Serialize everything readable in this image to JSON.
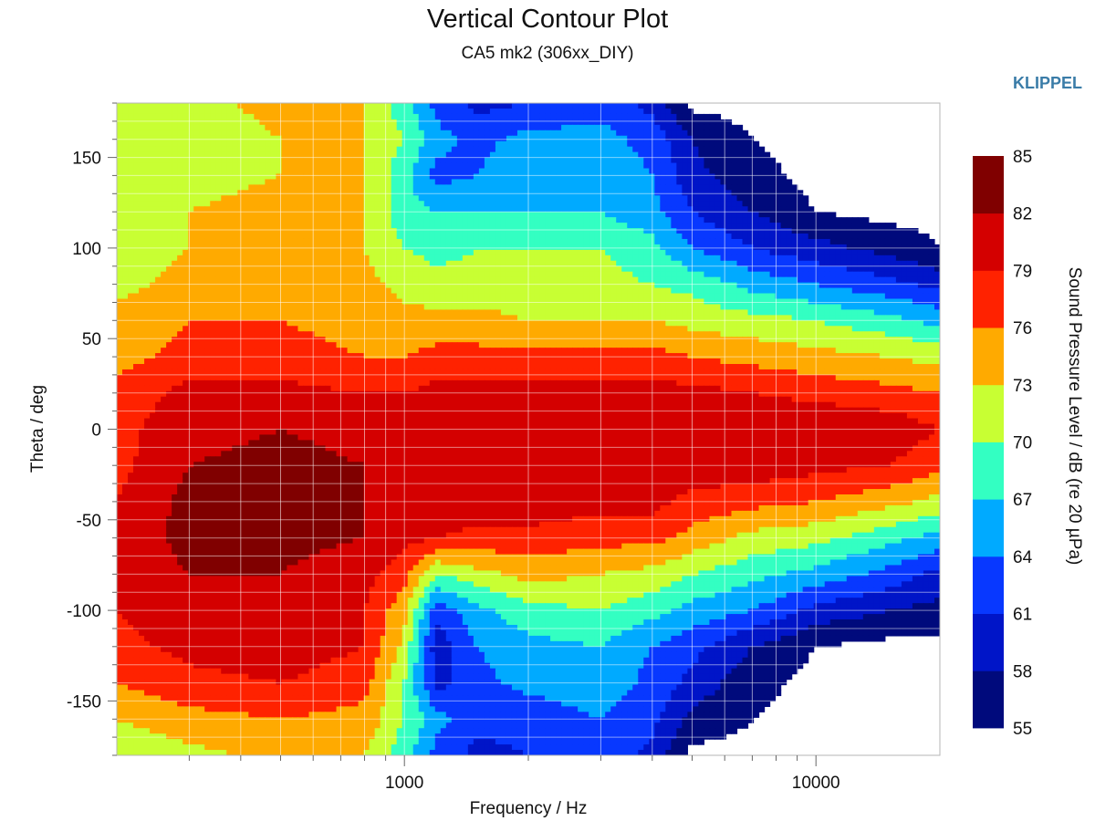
{
  "chart_data": {
    "type": "heatmap",
    "title": "Vertical Contour Plot",
    "subtitle": "CA5 mk2 (306xx_DIY)",
    "brand": "KLIPPEL",
    "brand_color": "#3a7ca8",
    "xlabel": "Frequency / Hz",
    "ylabel": "Theta / deg",
    "colorbar_label": "Sound Pressure Level / dB (re 20 µPa)",
    "x_scale": "log",
    "xlim": [
      200,
      20000
    ],
    "ylim": [
      -180,
      180
    ],
    "x_ticks": [
      1000,
      10000
    ],
    "x_tick_labels": [
      "1000",
      "10000"
    ],
    "y_ticks": [
      150,
      100,
      50,
      0,
      -50,
      -100,
      -150
    ],
    "y_tick_labels": [
      "150",
      "100",
      "50",
      "0",
      "-50",
      "-100",
      "-150"
    ],
    "grid": true,
    "legend": "right",
    "levels": [
      55,
      58,
      61,
      64,
      67,
      70,
      73,
      76,
      79,
      82,
      85
    ],
    "level_labels": [
      "85",
      "82",
      "79",
      "76",
      "73",
      "70",
      "67",
      "64",
      "61",
      "58",
      "55"
    ],
    "level_colors": [
      "#000a7c",
      "#0015c8",
      "#0838ff",
      "#00aaff",
      "#33ffc2",
      "#c8ff33",
      "#ffaa00",
      "#ff2200",
      "#d40000",
      "#800000"
    ],
    "angles": [
      -180,
      -160,
      -140,
      -120,
      -100,
      -80,
      -60,
      -40,
      -20,
      0,
      20,
      40,
      60,
      80,
      100,
      120,
      140,
      160,
      180
    ],
    "frequencies": [
      200,
      300,
      500,
      800,
      1000,
      1200,
      1500,
      2000,
      3000,
      4000,
      5000,
      7000,
      10000,
      15000,
      20000
    ],
    "spl": [
      [
        70,
        72,
        74,
        73,
        68,
        63,
        60,
        61,
        63,
        60,
        54,
        54,
        54,
        54,
        54
      ],
      [
        73,
        75,
        76,
        75,
        70,
        65,
        62,
        62,
        64,
        62,
        57,
        55,
        54,
        54,
        54
      ],
      [
        76,
        78,
        79,
        77,
        70,
        60,
        63,
        65,
        66,
        63,
        60,
        56,
        54,
        54,
        54
      ],
      [
        78,
        80,
        81,
        79,
        72,
        59,
        64,
        66,
        67,
        64,
        62,
        58,
        55,
        54,
        54
      ],
      [
        79,
        81,
        81,
        79,
        74,
        62,
        66,
        69,
        70,
        68,
        66,
        64,
        60,
        58,
        57
      ],
      [
        80,
        82,
        82,
        80,
        77,
        70,
        72,
        74,
        73,
        72,
        70,
        68,
        66,
        63,
        60
      ],
      [
        80,
        83,
        83,
        82,
        80,
        79,
        78,
        78,
        77,
        77,
        75,
        72,
        71,
        68,
        66
      ],
      [
        79,
        83,
        83,
        82,
        81,
        81,
        81,
        81,
        80,
        80,
        78,
        77,
        76,
        74,
        72
      ],
      [
        78,
        82,
        83,
        82,
        81,
        81,
        81,
        81,
        81,
        81,
        81,
        81,
        80,
        79,
        77
      ],
      [
        78,
        81,
        82,
        81,
        81,
        81,
        82,
        82,
        81,
        82,
        82,
        82,
        82,
        81,
        79
      ],
      [
        77,
        80,
        80,
        79,
        79,
        80,
        80,
        80,
        80,
        80,
        80,
        79,
        78,
        77,
        76
      ],
      [
        75,
        77,
        77,
        76,
        76,
        77,
        77,
        77,
        77,
        77,
        76,
        75,
        74,
        73,
        72
      ],
      [
        74,
        76,
        76,
        75,
        74,
        74,
        74,
        73,
        73,
        73,
        72,
        71,
        70,
        68,
        66
      ],
      [
        72,
        74,
        74,
        74,
        72,
        71,
        71,
        71,
        71,
        70,
        69,
        66,
        64,
        62,
        60
      ],
      [
        71,
        73,
        74,
        73,
        70,
        69,
        70,
        70,
        70,
        68,
        64,
        61,
        59,
        57,
        55
      ],
      [
        71,
        73,
        74,
        73,
        68,
        67,
        67,
        67,
        67,
        65,
        61,
        58,
        55,
        54,
        54
      ],
      [
        71,
        72,
        73,
        73,
        68,
        63,
        64,
        67,
        66,
        64,
        59,
        56,
        54,
        54,
        54
      ],
      [
        71,
        71,
        73,
        73,
        70,
        65,
        63,
        65,
        65,
        63,
        58,
        55,
        54,
        54,
        54
      ],
      [
        70,
        72,
        74,
        73,
        68,
        63,
        60,
        61,
        63,
        60,
        54,
        54,
        54,
        54,
        54
      ]
    ]
  }
}
